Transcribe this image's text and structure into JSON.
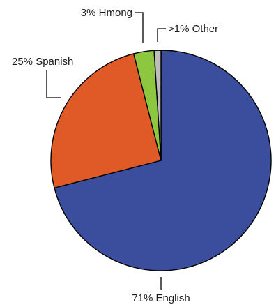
{
  "chart_data": {
    "type": "pie",
    "title": "",
    "slices": [
      {
        "label": "English",
        "display_label": "71% English",
        "value": 71,
        "color": "#3B4E9E"
      },
      {
        "label": "Spanish",
        "display_label": "25% Spanish",
        "value": 25,
        "color": "#E05A28"
      },
      {
        "label": "Hmong",
        "display_label": "3% Hmong",
        "value": 3,
        "color": "#8DC63F"
      },
      {
        "label": "Other",
        "display_label": ">1% Other",
        "value": 1,
        "color": "#BDBDBD"
      }
    ],
    "start_angle": "12 o'clock",
    "direction": "clockwise",
    "legend": "none"
  }
}
